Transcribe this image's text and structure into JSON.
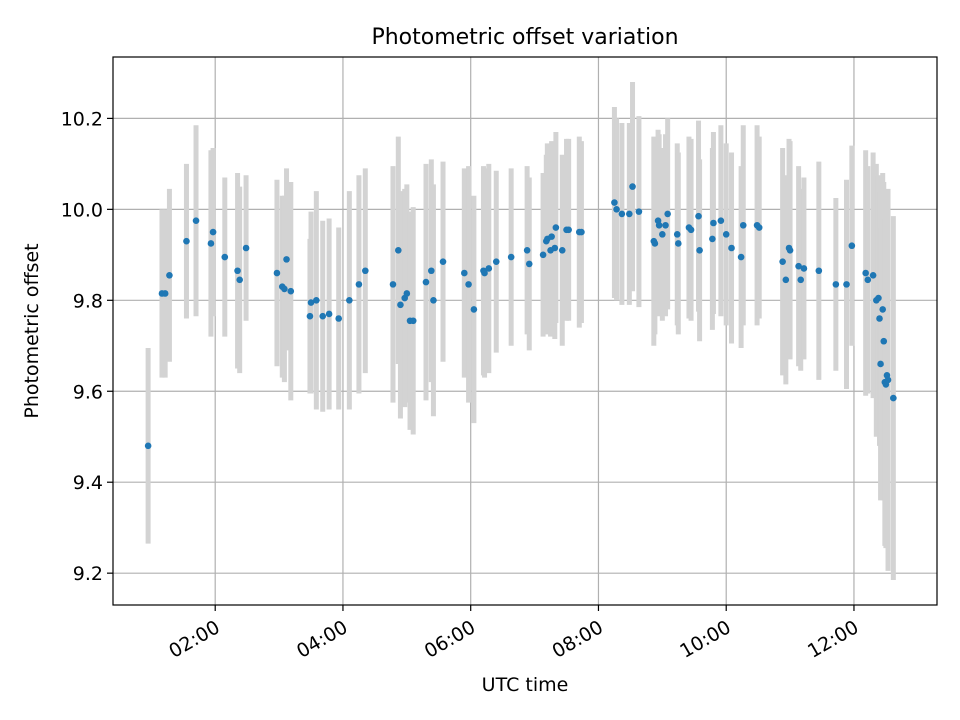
{
  "chart_data": {
    "type": "scatter",
    "title": "Photometric offset variation",
    "xlabel": "UTC time",
    "ylabel": "Photometric offset",
    "x_tick_labels": [
      "02:00",
      "04:00",
      "06:00",
      "08:00",
      "10:00",
      "12:00"
    ],
    "x_ticks_hours": [
      2,
      4,
      6,
      8,
      10,
      12
    ],
    "y_tick_labels": [
      "9.2",
      "9.4",
      "9.6",
      "9.8",
      "10.0",
      "10.2"
    ],
    "y_ticks": [
      9.2,
      9.4,
      9.6,
      9.8,
      10.0,
      10.2
    ],
    "xlim": [
      "00:24",
      "13:18"
    ],
    "ylim": [
      9.13,
      10.335
    ],
    "grid": true,
    "colors": {
      "points": "#1f77b4",
      "error_bars": "#d3d3d3",
      "grid": "#b0b0b0"
    },
    "series": [
      {
        "x": [
          "00:57",
          "01:10",
          "01:13",
          "01:17",
          "01:33",
          "01:42",
          "01:56",
          "01:58",
          "02:09",
          "02:21",
          "02:23",
          "02:29",
          "02:58",
          "03:03",
          "03:05",
          "03:07",
          "03:11",
          "03:29",
          "03:30",
          "03:35",
          "03:41",
          "03:47",
          "03:56",
          "04:06",
          "04:15",
          "04:21",
          "04:47",
          "04:52",
          "04:54",
          "04:58",
          "05:00",
          "05:03",
          "05:06",
          "05:18",
          "05:23",
          "05:25",
          "05:34",
          "05:54",
          "05:58",
          "06:03",
          "06:12",
          "06:13",
          "06:17",
          "06:24",
          "06:38",
          "06:53",
          "06:55",
          "07:08",
          "07:11",
          "07:12",
          "07:15",
          "07:16",
          "07:19",
          "07:20",
          "07:26",
          "07:30",
          "07:32",
          "07:42",
          "07:44",
          "08:15",
          "08:17",
          "08:22",
          "08:29",
          "08:32",
          "08:38",
          "08:52",
          "08:53",
          "08:56",
          "08:57",
          "09:00",
          "09:03",
          "09:05",
          "09:14",
          "09:15",
          "09:25",
          "09:27",
          "09:34",
          "09:35",
          "09:47",
          "09:48",
          "09:55",
          "10:00",
          "10:05",
          "10:14",
          "10:16",
          "10:29",
          "10:31",
          "10:53",
          "10:56",
          "10:59",
          "11:00",
          "11:08",
          "11:10",
          "11:13",
          "11:27",
          "11:43",
          "11:53",
          "11:58",
          "12:11",
          "12:13",
          "12:18",
          "12:21",
          "12:23",
          "12:24",
          "12:25",
          "12:27",
          "12:28",
          "12:29",
          "12:30",
          "12:31",
          "12:32",
          "12:37"
        ],
        "y": [
          9.48,
          9.815,
          9.815,
          9.855,
          9.93,
          9.975,
          9.925,
          9.95,
          9.895,
          9.865,
          9.845,
          9.915,
          9.86,
          9.83,
          9.825,
          9.89,
          9.82,
          9.765,
          9.795,
          9.8,
          9.765,
          9.77,
          9.76,
          9.8,
          9.835,
          9.865,
          9.835,
          9.91,
          9.79,
          9.805,
          9.815,
          9.755,
          9.755,
          9.84,
          9.865,
          9.8,
          9.885,
          9.86,
          9.835,
          9.78,
          9.865,
          9.86,
          9.87,
          9.885,
          9.895,
          9.91,
          9.88,
          9.9,
          9.93,
          9.935,
          9.91,
          9.94,
          9.915,
          9.96,
          9.91,
          9.955,
          9.955,
          9.95,
          9.95,
          10.015,
          10.0,
          9.99,
          9.99,
          10.05,
          9.995,
          9.93,
          9.925,
          9.975,
          9.965,
          9.945,
          9.965,
          9.99,
          9.945,
          9.925,
          9.96,
          9.955,
          9.985,
          9.91,
          9.935,
          9.97,
          9.975,
          9.945,
          9.915,
          9.895,
          9.965,
          9.965,
          9.96,
          9.885,
          9.845,
          9.915,
          9.91,
          9.875,
          9.845,
          9.87,
          9.865,
          9.835,
          9.835,
          9.92,
          9.86,
          9.845,
          9.855,
          9.8,
          9.805,
          9.76,
          9.66,
          9.78,
          9.71,
          9.62,
          9.615,
          9.635,
          9.625,
          9.585
        ],
        "yerr": [
          0.215,
          0.185,
          0.185,
          0.19,
          0.17,
          0.21,
          0.205,
          0.185,
          0.175,
          0.215,
          0.205,
          0.16,
          0.205,
          0.2,
          0.205,
          0.2,
          0.24,
          0.17,
          0.2,
          0.24,
          0.21,
          0.21,
          0.2,
          0.24,
          0.24,
          0.225,
          0.26,
          0.25,
          0.25,
          0.24,
          0.24,
          0.24,
          0.25,
          0.26,
          0.245,
          0.255,
          0.22,
          0.23,
          0.26,
          0.25,
          0.23,
          0.23,
          0.23,
          0.2,
          0.195,
          0.185,
          0.19,
          0.18,
          0.19,
          0.21,
          0.19,
          0.21,
          0.2,
          0.21,
          0.21,
          0.2,
          0.2,
          0.21,
          0.2,
          0.21,
          0.2,
          0.2,
          0.2,
          0.23,
          0.21,
          0.23,
          0.2,
          0.2,
          0.2,
          0.19,
          0.2,
          0.21,
          0.2,
          0.2,
          0.2,
          0.2,
          0.21,
          0.2,
          0.2,
          0.2,
          0.21,
          0.2,
          0.21,
          0.2,
          0.22,
          0.22,
          0.2,
          0.25,
          0.23,
          0.24,
          0.24,
          0.22,
          0.2,
          0.2,
          0.24,
          0.19,
          0.23,
          0.22,
          0.27,
          0.25,
          0.27,
          0.3,
          0.27,
          0.28,
          0.3,
          0.3,
          0.35,
          0.36,
          0.36,
          0.36,
          0.42,
          0.4
        ]
      }
    ]
  }
}
